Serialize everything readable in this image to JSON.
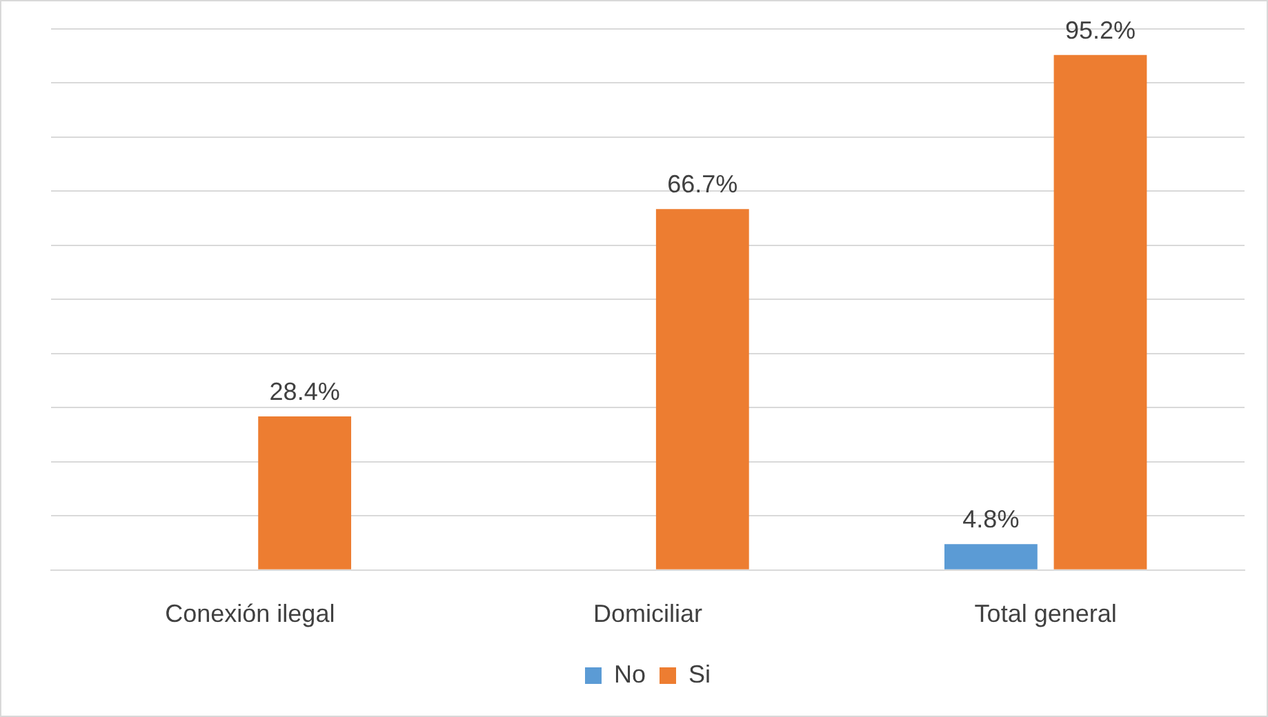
{
  "chart_data": {
    "type": "bar",
    "categories": [
      "Conexión ilegal",
      "Domiciliar",
      "Total general"
    ],
    "series": [
      {
        "name": "No",
        "color": "#5b9bd5",
        "values": [
          null,
          null,
          4.8
        ],
        "value_labels": [
          null,
          null,
          "4.8%"
        ]
      },
      {
        "name": "Si",
        "color": "#ed7d31",
        "values": [
          28.4,
          66.7,
          95.2
        ],
        "value_labels": [
          "28.4%",
          "66.7%",
          "95.2%"
        ]
      }
    ],
    "ylim": [
      0,
      100
    ],
    "yticks": [
      {
        "value": 0,
        "label": null
      },
      {
        "value": 10,
        "label": null
      },
      {
        "value": 20,
        "label": null
      },
      {
        "value": 30,
        "label": null
      },
      {
        "value": 40,
        "label": null
      },
      {
        "value": 50,
        "label": null
      },
      {
        "value": 60,
        "label": null
      },
      {
        "value": 70,
        "label": null
      },
      {
        "value": 80,
        "label": null
      },
      {
        "value": 90,
        "label": null
      },
      {
        "value": 100,
        "label": null
      }
    ],
    "grid": "y",
    "legend": "bottom",
    "tick_labels": "x"
  }
}
